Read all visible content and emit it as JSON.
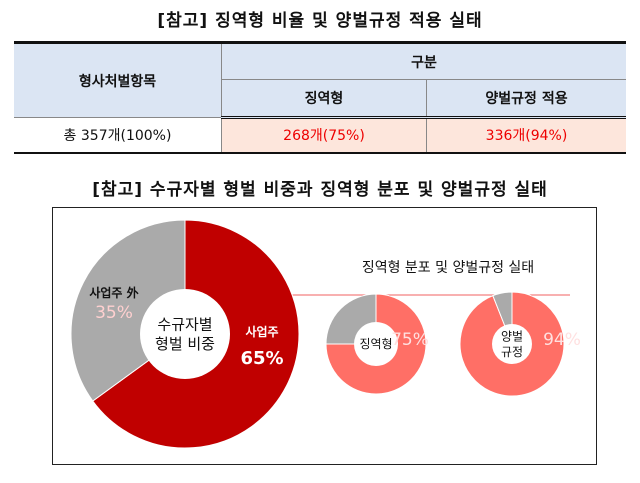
{
  "table_title": "[참고] 징역형 비율 및 양벌규정 적용 실태",
  "table": {
    "col_item": "형사처벌항목",
    "col_group": "구분",
    "col_prison": "징역형",
    "col_joint": "양벌규정 적용",
    "row_total": "총 357개(100%)",
    "row_prison": "268개(75%)",
    "row_joint": "336개(94%)"
  },
  "chart_title": "[참고] 수규자별 형벌 비중과 징역형 분포 및 양벌규정 실태",
  "subheading": "징역형 분포 및 양벌규정 실태",
  "chart_data": [
    {
      "type": "pie",
      "variant": "donut",
      "center_label": "수규자별 형벌 비중",
      "slices": [
        {
          "label": "사업주",
          "value": 65,
          "text": "65%",
          "color": "#c00000"
        },
        {
          "label": "사업주 外",
          "value": 35,
          "text": "35%",
          "color": "#aaaaaa"
        }
      ]
    },
    {
      "type": "pie",
      "variant": "donut",
      "center_label": "징역형",
      "slices": [
        {
          "value": 75,
          "text": "75%",
          "color": "#ff6f66"
        },
        {
          "value": 25,
          "color": "#aaaaaa"
        }
      ]
    },
    {
      "type": "pie",
      "variant": "donut",
      "center_label": "양벌 규정",
      "slices": [
        {
          "value": 94,
          "text": "94%",
          "color": "#ff6f66"
        },
        {
          "value": 6,
          "color": "#aaaaaa"
        }
      ]
    }
  ]
}
